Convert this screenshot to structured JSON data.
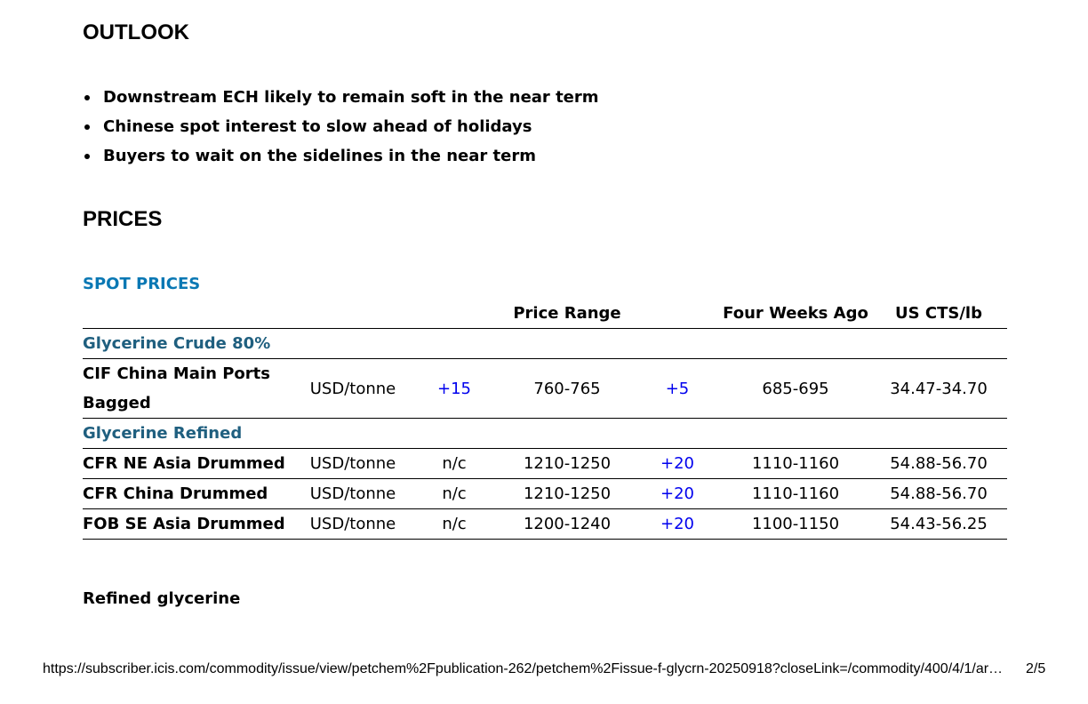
{
  "outlook": {
    "title": "OUTLOOK",
    "bullets": [
      "Downstream ECH likely to remain soft in the near term",
      "Chinese spot interest to slow ahead of holidays",
      "Buyers to wait on the sidelines in the near term"
    ]
  },
  "prices": {
    "title": "PRICES",
    "spot_title": "SPOT PRICES",
    "headers": [
      "",
      "",
      "",
      "Price Range",
      "",
      "Four Weeks Ago",
      "US CTS/lb"
    ],
    "groups": [
      {
        "name": "Glycerine Crude 80%",
        "rows": [
          {
            "name": "CIF China Main Ports Bagged",
            "unit": "USD/tonne",
            "change": "+15",
            "range": "760-765",
            "change4w": "+5",
            "four_weeks_ago": "685-695",
            "us_cts_lb": "34.47-34.70"
          }
        ]
      },
      {
        "name": "Glycerine Refined",
        "rows": [
          {
            "name": "CFR NE Asia Drummed",
            "unit": "USD/tonne",
            "change": "n/c",
            "range": "1210-1250",
            "change4w": "+20",
            "four_weeks_ago": "1110-1160",
            "us_cts_lb": "54.88-56.70"
          },
          {
            "name": "CFR China Drummed",
            "unit": "USD/tonne",
            "change": "n/c",
            "range": "1210-1250",
            "change4w": "+20",
            "four_weeks_ago": "1110-1160",
            "us_cts_lb": "54.88-56.70"
          },
          {
            "name": "FOB SE Asia Drummed",
            "unit": "USD/tonne",
            "change": "n/c",
            "range": "1200-1240",
            "change4w": "+20",
            "four_weeks_ago": "1100-1150",
            "us_cts_lb": "54.43-56.25"
          }
        ]
      }
    ]
  },
  "section_refined": {
    "title": "Refined glycerine"
  },
  "footer": {
    "url": "https://subscriber.icis.com/commodity/issue/view/petchem%2Fpublication-262/petchem%2Fissue-f-glycrn-20250918?closeLink=/commodity/400/4/1/ar…",
    "page": "2/5"
  },
  "colors": {
    "spot_title": "#0a78b4",
    "group_title": "#1f5f7f",
    "positive_change": "#0000ee"
  }
}
